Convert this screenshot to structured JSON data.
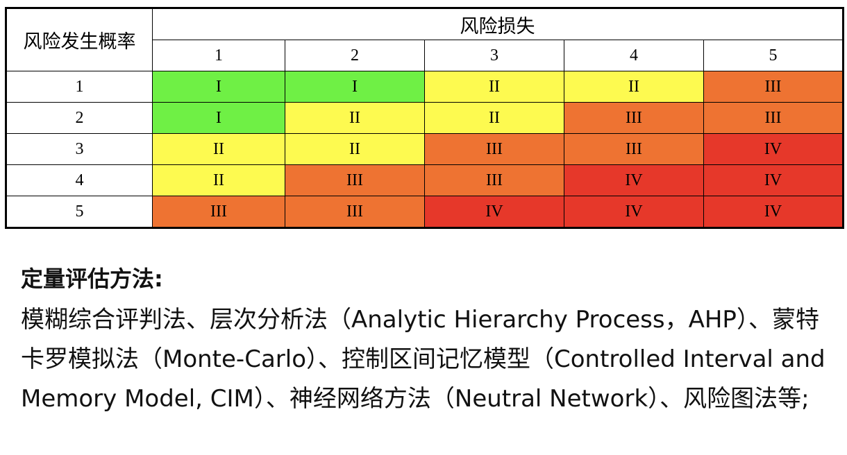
{
  "matrix": {
    "corner_label": "风险发生概率",
    "loss_header": "风险损失",
    "columns": [
      "1",
      "2",
      "3",
      "4",
      "5"
    ],
    "rows": [
      {
        "label": "1",
        "cells": [
          "I",
          "I",
          "II",
          "II",
          "III"
        ]
      },
      {
        "label": "2",
        "cells": [
          "I",
          "II",
          "II",
          "III",
          "III"
        ]
      },
      {
        "label": "3",
        "cells": [
          "II",
          "II",
          "III",
          "III",
          "IV"
        ]
      },
      {
        "label": "4",
        "cells": [
          "II",
          "III",
          "III",
          "IV",
          "IV"
        ]
      },
      {
        "label": "5",
        "cells": [
          "III",
          "III",
          "IV",
          "IV",
          "IV"
        ]
      }
    ],
    "level_colors": {
      "I": "#6ff045",
      "II": "#fdfa50",
      "III": "#ee7332",
      "IV": "#e6382a"
    }
  },
  "notes": {
    "heading": "定量评估方法:",
    "body": "模糊综合评判法、层次分析法（Analytic Hierarchy Process，AHP）、蒙特卡罗模拟法（Monte-Carlo）、控制区间记忆模型（Controlled Interval and Memory Model, CIM）、神经网络方法（Neutral Network）、风险图法等;"
  }
}
